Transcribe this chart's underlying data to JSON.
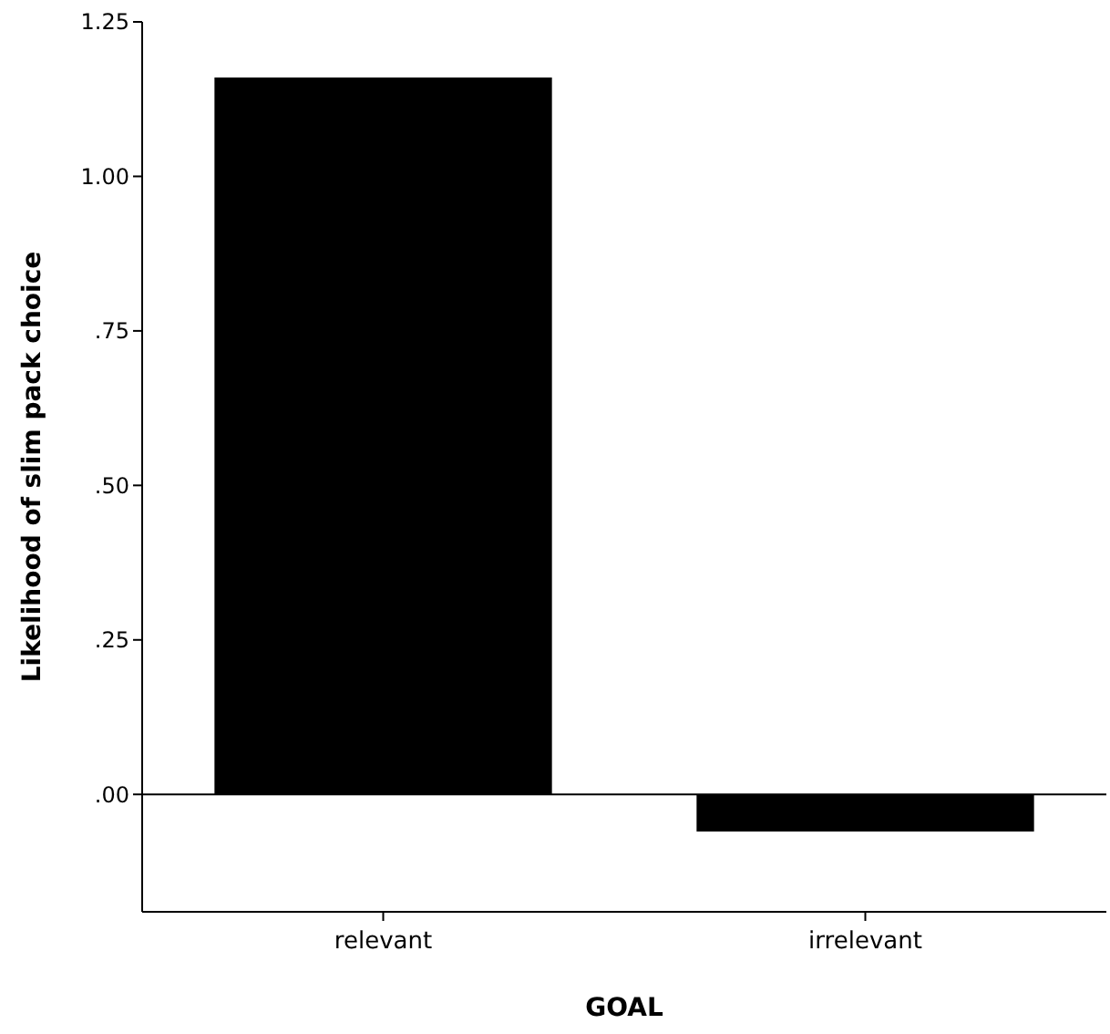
{
  "chart_data": {
    "type": "bar",
    "xlabel": "GOAL",
    "ylabel": "Likelihood of slim pack choice",
    "categories": [
      "relevant",
      "irrelevant"
    ],
    "values": [
      1.16,
      -0.06
    ],
    "color": "#000000",
    "ylim": [
      -0.19,
      1.25
    ],
    "yticks": [
      {
        "value": 0,
        "label": ".00"
      },
      {
        "value": 0.25,
        "label": ".25"
      },
      {
        "value": 0.5,
        "label": ".50"
      },
      {
        "value": 0.75,
        "label": ".75"
      },
      {
        "value": 1,
        "label": "1.00"
      },
      {
        "value": 1.25,
        "label": "1.25"
      }
    ],
    "ref_lines": [
      {
        "axis": "y",
        "value": 0,
        "color": "#000000"
      }
    ]
  }
}
